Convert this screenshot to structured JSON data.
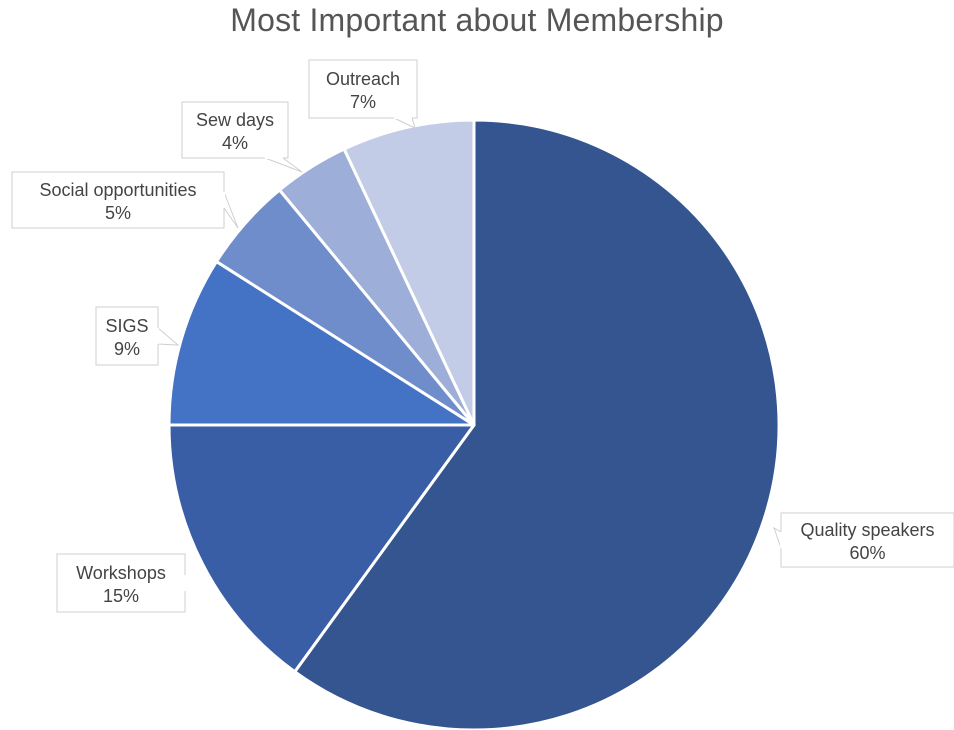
{
  "chart_data": {
    "type": "pie",
    "title": "Most Important about Membership",
    "slices": [
      {
        "label": "Quality speakers",
        "value": 60,
        "value_label": "60%",
        "color": "#34558f"
      },
      {
        "label": "Workshops",
        "value": 15,
        "value_label": "15%",
        "color": "#3a5ea6"
      },
      {
        "label": "SIGS",
        "value": 9,
        "value_label": "9%",
        "color": "#4472c4"
      },
      {
        "label": "Social opportunities",
        "value": 5,
        "value_label": "5%",
        "color": "#6f8dcb"
      },
      {
        "label": "Sew days",
        "value": 4,
        "value_label": "4%",
        "color": "#9daed9"
      },
      {
        "label": "Outreach",
        "value": 7,
        "value_label": "7%",
        "color": "#c3cce6"
      }
    ],
    "start_angle": "12 o'clock",
    "direction": "clockwise",
    "legend": "none",
    "data_labels": "callout boxes with category name and percent"
  }
}
